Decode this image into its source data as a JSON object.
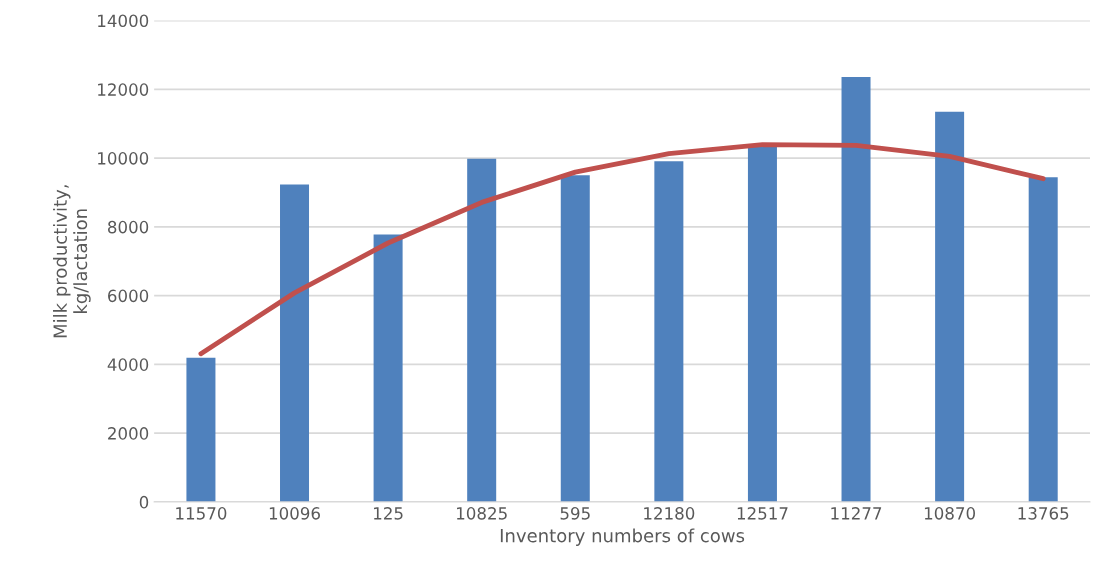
{
  "chart_data": {
    "type": "bar",
    "xlabel": "Inventory numbers of cows",
    "ylabel": "Milk productivity,\nkg/lactation",
    "categories": [
      "11570",
      "10096",
      "125",
      "10825",
      "595",
      "12180",
      "12517",
      "11277",
      "10870",
      "13765"
    ],
    "series": [
      {
        "color": "#4f81bd",
        "values": [
          4190,
          9230,
          7780,
          9980,
          9500,
          9910,
          10340,
          12360,
          11350,
          9440
        ]
      },
      {
        "type": "line",
        "color": "#c0504d",
        "values": [
          4310,
          6080,
          7530,
          8710,
          9590,
          10130,
          10390,
          10370,
          10050,
          9400
        ]
      }
    ],
    "ylim": [
      0,
      14000
    ],
    "yticks": [
      0,
      2000,
      4000,
      6000,
      8000,
      10000,
      12000,
      14000
    ],
    "grid": "y"
  }
}
